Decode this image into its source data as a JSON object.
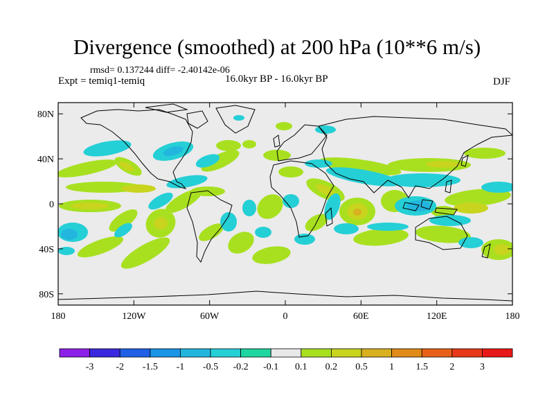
{
  "title": "Divergence (smoothed) at 200 hPa (10**6 m/s)",
  "stats": "rmsd= 0.137244 diff= -2.40142e-06",
  "experiment": "Expt = temiq1-temiq",
  "period": "16.0kyr BP - 16.0kyr BP",
  "season": "DJF",
  "map": {
    "lat_ticks": [
      "80N",
      "40N",
      "0",
      "40S",
      "80S"
    ],
    "lat_values": [
      80,
      40,
      0,
      -40,
      -80
    ],
    "lon_ticks": [
      "180",
      "120W",
      "60W",
      "0",
      "60E",
      "120E",
      "180"
    ],
    "lon_values": [
      -180,
      -120,
      -60,
      0,
      60,
      120,
      180
    ]
  },
  "colorbar": {
    "labels": [
      "-3",
      "-2",
      "-1.5",
      "-1",
      "-0.5",
      "-0.2",
      "-0.1",
      "0.1",
      "0.2",
      "0.5",
      "1",
      "1.5",
      "2",
      "3"
    ],
    "colors": [
      "#8c20e8",
      "#3a28e0",
      "#1f5fe6",
      "#1a94e6",
      "#22b6de",
      "#25cfd6",
      "#1ed6a0",
      "#e8e8e8",
      "#a8e020",
      "#c8d41e",
      "#d8b020",
      "#e08a18",
      "#e86018",
      "#e83818",
      "#e81818"
    ]
  }
}
